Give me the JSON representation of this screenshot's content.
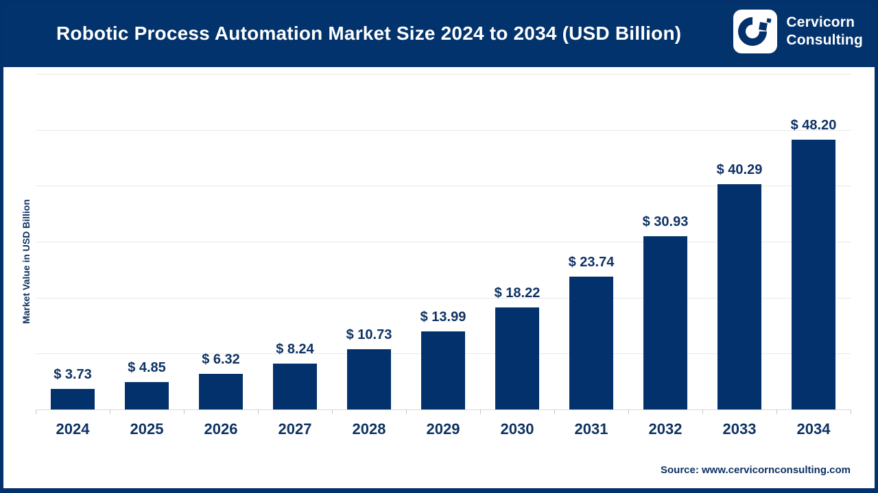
{
  "header": {
    "title": "Robotic Process Automation Market Size 2024 to 2034 (USD Billion)",
    "brand": {
      "logo_icon": "cervicorn-c-mark",
      "line1": "Cervicorn",
      "line2": "Consulting"
    }
  },
  "chart_data": {
    "type": "bar",
    "title": "Robotic Process Automation Market Size 2024 to 2034 (USD Billion)",
    "categories": [
      "2024",
      "2025",
      "2026",
      "2027",
      "2028",
      "2029",
      "2030",
      "2031",
      "2032",
      "2033",
      "2034"
    ],
    "values": [
      3.73,
      4.85,
      6.32,
      8.24,
      10.73,
      13.99,
      18.22,
      23.74,
      30.93,
      40.29,
      48.2
    ],
    "value_labels": [
      "$ 3.73",
      "$ 4.85",
      "$ 6.32",
      "$ 8.24",
      "$ 10.73",
      "$ 13.99",
      "$ 18.22",
      "$ 23.74",
      "$ 30.93",
      "$ 40.29",
      "$ 48.20"
    ],
    "value_prefix": "$ ",
    "xlabel": "",
    "ylabel": "Market Value in USD Billion",
    "ylim": [
      0,
      60
    ],
    "gridline_step": 10,
    "grid": true,
    "legend": false,
    "y_tick_labels_shown": false
  },
  "source": {
    "label": "Source: www.cervicornconsulting.com"
  },
  "colors": {
    "header_bg": "#03336c",
    "bar": "#03316b",
    "text_navy": "#0e3263",
    "title_text": "#ffffff",
    "gridline": "#e9e9e9",
    "axis_line": "#d9d9d9",
    "border": "#03316b",
    "background": "#ffffff"
  }
}
